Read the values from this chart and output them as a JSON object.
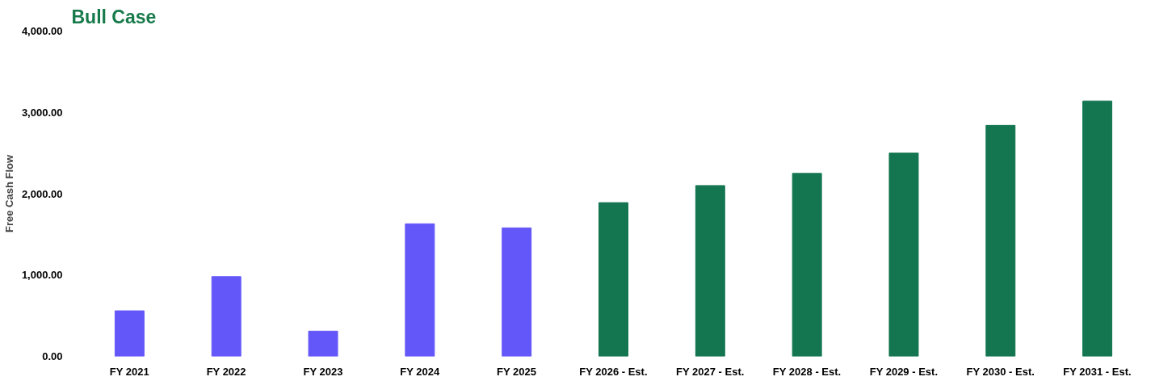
{
  "chart_data": {
    "type": "bar",
    "title": "Bull Case",
    "ylabel": "Free Cash Flow",
    "categories": [
      "FY 2021",
      "FY 2022",
      "FY 2023",
      "FY 2024",
      "FY 2025",
      "FY 2026 - Est.",
      "FY 2027 - Est.",
      "FY 2028 - Est.",
      "FY 2029 - Est.",
      "FY 2030 - Est.",
      "FY 2031 - Est."
    ],
    "values": [
      560,
      980,
      310,
      1630,
      1580,
      1890,
      2100,
      2250,
      2500,
      2840,
      3140
    ],
    "colors": [
      "#6457f9",
      "#6457f9",
      "#6457f9",
      "#6457f9",
      "#6457f9",
      "#137650",
      "#137650",
      "#137650",
      "#137650",
      "#137650",
      "#137650"
    ],
    "ylim": [
      0,
      4000
    ],
    "yticks": [
      {
        "value": 0,
        "label": "0.00"
      },
      {
        "value": 1000,
        "label": "1,000.00"
      },
      {
        "value": 2000,
        "label": "2,000.00"
      },
      {
        "value": 3000,
        "label": "3,000.00"
      },
      {
        "value": 4000,
        "label": "4,000.00"
      }
    ],
    "grid": false
  }
}
